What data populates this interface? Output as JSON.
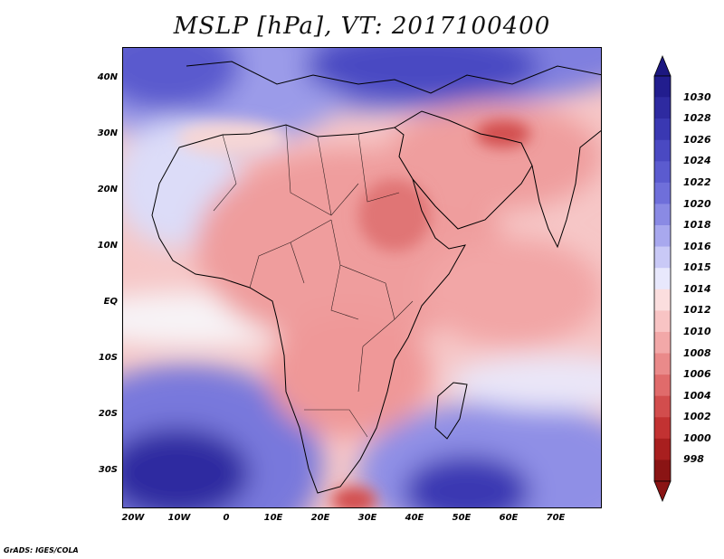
{
  "title": "MSLP [hPa], VT: 2017100400",
  "credit": "GrADS: IGES/COLA",
  "map": {
    "lat_labels": [
      "40N",
      "30N",
      "20N",
      "10N",
      "EQ",
      "10S",
      "20S",
      "30S"
    ],
    "lon_labels": [
      "20W",
      "10W",
      "0",
      "10E",
      "20E",
      "30E",
      "40E",
      "50E",
      "60E",
      "70E"
    ],
    "extent": {
      "lon": [
        -22,
        80
      ],
      "lat": [
        -37,
        45
      ]
    }
  },
  "colorbar": {
    "levels": [
      "1030",
      "1028",
      "1026",
      "1024",
      "1022",
      "1020",
      "1018",
      "1016",
      "1015",
      "1014",
      "1012",
      "1010",
      "1008",
      "1006",
      "1004",
      "1002",
      "1000",
      "998"
    ],
    "colors": [
      "#221d8e",
      "#2e2aa0",
      "#3a38b2",
      "#4a49c2",
      "#5b5bcf",
      "#6f6fda",
      "#8a8ae4",
      "#a8a8ee",
      "#c9c9f6",
      "#e8e8fc",
      "#fbdede",
      "#f8c4c4",
      "#f2a8a8",
      "#ea8a8a",
      "#e06b6b",
      "#d24d4d",
      "#c23232",
      "#a81f1f",
      "#8a1414"
    ],
    "top_color": "#1c1780",
    "bottom_color": "#8a1414"
  }
}
